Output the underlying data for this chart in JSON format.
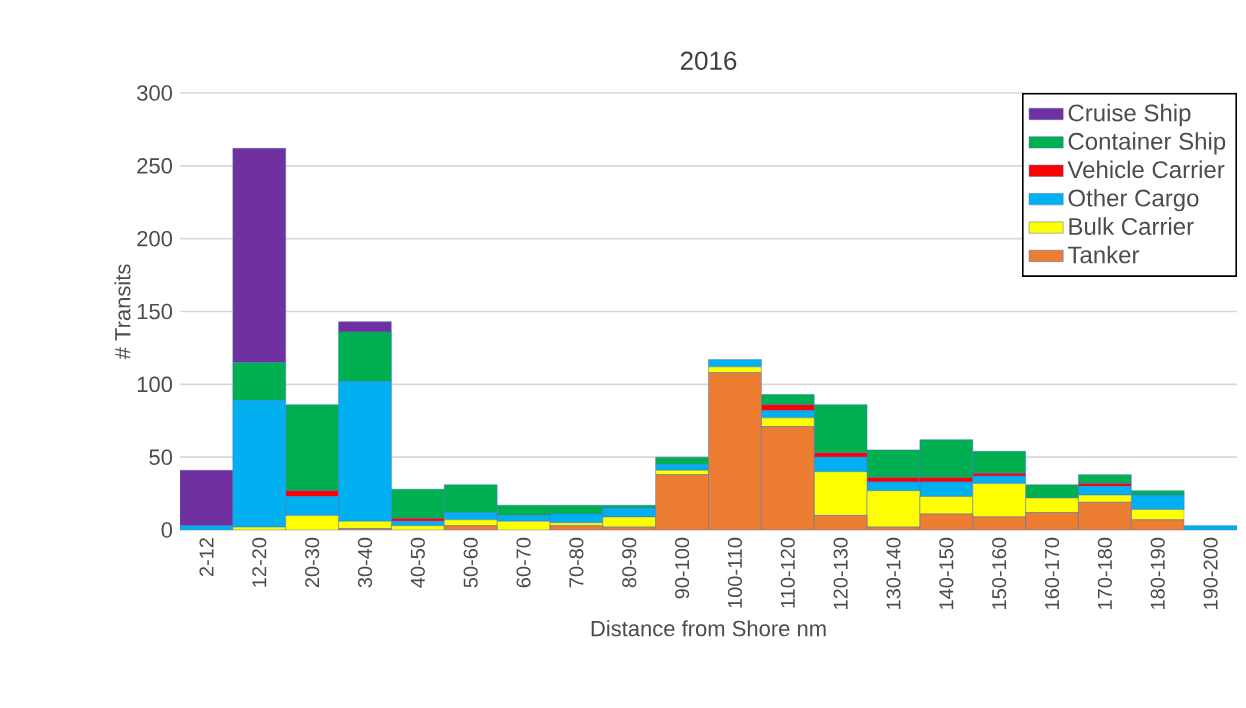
{
  "chart_data": {
    "type": "bar",
    "stacked": true,
    "title": "2016",
    "xlabel": "Distance from Shore nm",
    "ylabel": "# Transits",
    "categories": [
      "2-12",
      "12-20",
      "20-30",
      "30-40",
      "40-50",
      "50-60",
      "60-70",
      "70-80",
      "80-90",
      "90-100",
      "100-110",
      "110-120",
      "120-130",
      "130-140",
      "140-150",
      "150-160",
      "160-170",
      "170-180",
      "180-190",
      "190-200"
    ],
    "series": [
      {
        "name": "Tanker",
        "color": "#ed7d31",
        "values": [
          0,
          0,
          0,
          1,
          0,
          3,
          0,
          3,
          2,
          38,
          108,
          71,
          10,
          2,
          11,
          9,
          12,
          19,
          7,
          0
        ]
      },
      {
        "name": "Bulk Carrier",
        "color": "#ffff00",
        "values": [
          0,
          2,
          10,
          5,
          3,
          4,
          6,
          2,
          7,
          3,
          4,
          6,
          30,
          25,
          12,
          23,
          10,
          5,
          7,
          0
        ]
      },
      {
        "name": "Other Cargo",
        "color": "#00b0f0",
        "values": [
          3,
          87,
          13,
          96,
          3,
          5,
          4,
          6,
          6,
          4,
          5,
          5,
          10,
          6,
          10,
          5,
          0,
          6,
          10,
          3
        ]
      },
      {
        "name": "Vehicle Carrier",
        "color": "#ff0000",
        "values": [
          0,
          0,
          4,
          0,
          2,
          0,
          0,
          0,
          0,
          0,
          0,
          4,
          3,
          3,
          3,
          2,
          0,
          2,
          0,
          0
        ]
      },
      {
        "name": "Container Ship",
        "color": "#00b050",
        "values": [
          0,
          26,
          59,
          34,
          20,
          19,
          7,
          6,
          2,
          5,
          0,
          7,
          33,
          19,
          26,
          15,
          9,
          6,
          3,
          0
        ]
      },
      {
        "name": "Cruise Ship",
        "color": "#7030a0",
        "values": [
          38,
          147,
          0,
          7,
          0,
          0,
          0,
          0,
          0,
          0,
          0,
          0,
          0,
          0,
          0,
          0,
          0,
          0,
          0,
          0
        ]
      }
    ],
    "ylim": [
      0,
      300
    ],
    "yticks": [
      0,
      50,
      100,
      150,
      200,
      250,
      300
    ],
    "grid": "y",
    "legend": "top right"
  }
}
